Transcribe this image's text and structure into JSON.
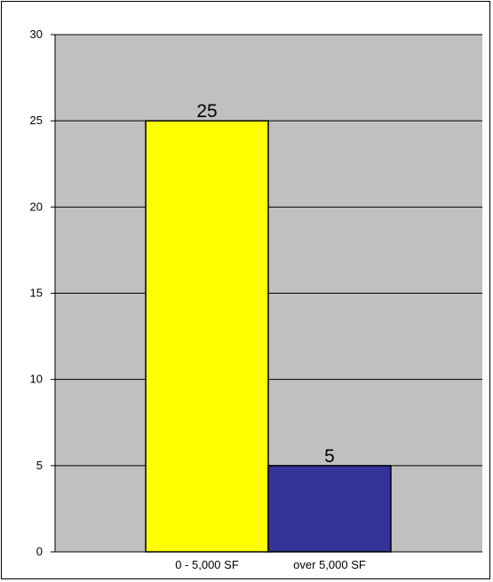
{
  "chart_data": {
    "type": "bar",
    "categories": [
      "0 - 5,000 SF",
      "over 5,000 SF"
    ],
    "values": [
      25,
      5
    ],
    "data_labels": [
      "25",
      "5"
    ],
    "colors": [
      "#FFFF00",
      "#333399"
    ],
    "plot_background": "#C0C0C0",
    "title": "",
    "xlabel": "",
    "ylabel": "",
    "ylim": [
      0,
      30
    ],
    "yticks": [
      0,
      5,
      10,
      15,
      20,
      25,
      30
    ],
    "grid": true,
    "legend": "none"
  }
}
